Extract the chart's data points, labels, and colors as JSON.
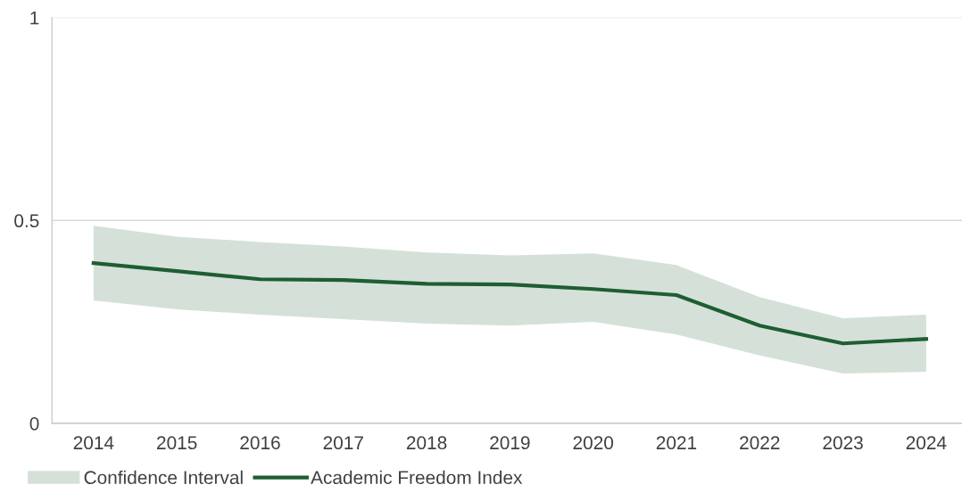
{
  "chart_data": {
    "type": "line",
    "categories": [
      "2014",
      "2015",
      "2016",
      "2017",
      "2018",
      "2019",
      "2020",
      "2021",
      "2022",
      "2023",
      "2024"
    ],
    "series": [
      {
        "name": "Academic Freedom Index",
        "color": "#1e5e32",
        "values": [
          0.395,
          0.375,
          0.355,
          0.353,
          0.344,
          0.342,
          0.331,
          0.316,
          0.241,
          0.197,
          0.208
        ],
        "lower": [
          0.303,
          0.281,
          0.268,
          0.257,
          0.246,
          0.241,
          0.25,
          0.219,
          0.167,
          0.123,
          0.127
        ],
        "upper": [
          0.487,
          0.46,
          0.447,
          0.436,
          0.421,
          0.414,
          0.419,
          0.39,
          0.311,
          0.259,
          0.268
        ]
      }
    ],
    "annotations": [
      "Confidence Interval"
    ],
    "ylim": [
      0,
      1
    ],
    "yticks": [
      0,
      0.5,
      1
    ],
    "grid": "y",
    "legend": "bottom left",
    "marker": "none",
    "line_style": "solid"
  }
}
